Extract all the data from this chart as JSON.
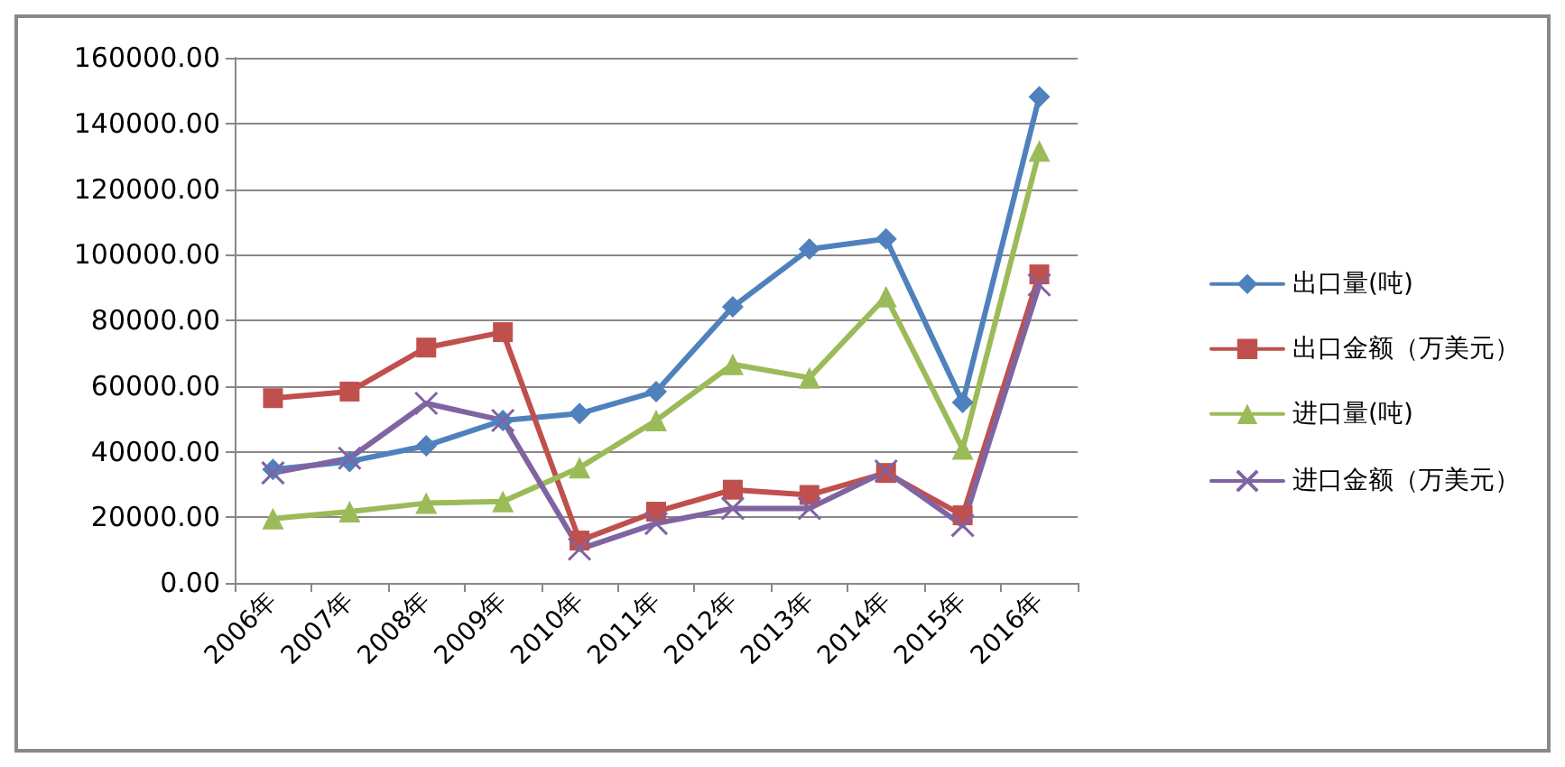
{
  "chart_data": {
    "type": "line",
    "categories": [
      "2006年",
      "2007年",
      "2008年",
      "2009年",
      "2010年",
      "2011年",
      "2012年",
      "2013年",
      "2014年",
      "2015年",
      "2016年"
    ],
    "series": [
      {
        "name": "出口量(吨)",
        "color": "#4f81bd",
        "marker": "diamond",
        "values": [
          34600,
          37000,
          41800,
          49500,
          51600,
          58300,
          84100,
          101700,
          104800,
          55000,
          148100
        ]
      },
      {
        "name": "出口金额（万美元）",
        "color": "#c0504d",
        "marker": "square",
        "values": [
          56300,
          58300,
          71700,
          76400,
          12900,
          21700,
          28400,
          26800,
          33500,
          20600,
          94000
        ]
      },
      {
        "name": "进口量(吨)",
        "color": "#9bbb59",
        "marker": "triangle",
        "values": [
          19600,
          21700,
          24300,
          24800,
          35100,
          49500,
          66600,
          62500,
          87200,
          40800,
          131600
        ]
      },
      {
        "name": "进口金额（万美元）",
        "color": "#8064a2",
        "marker": "cross",
        "values": [
          33500,
          38000,
          54700,
          49500,
          10300,
          18100,
          22700,
          22700,
          34100,
          17500,
          90800
        ]
      }
    ],
    "ylim": [
      0,
      160000
    ],
    "yticks": [
      {
        "value": 0,
        "label": "0.00"
      },
      {
        "value": 20000,
        "label": "20000.00"
      },
      {
        "value": 40000,
        "label": "40000.00"
      },
      {
        "value": 60000,
        "label": "60000.00"
      },
      {
        "value": 80000,
        "label": "80000.00"
      },
      {
        "value": 100000,
        "label": "100000.00"
      },
      {
        "value": 120000,
        "label": "120000.00"
      },
      {
        "value": 140000,
        "label": "140000.00"
      },
      {
        "value": 160000,
        "label": "160000.00"
      }
    ],
    "grid": "y",
    "legend": "right"
  }
}
